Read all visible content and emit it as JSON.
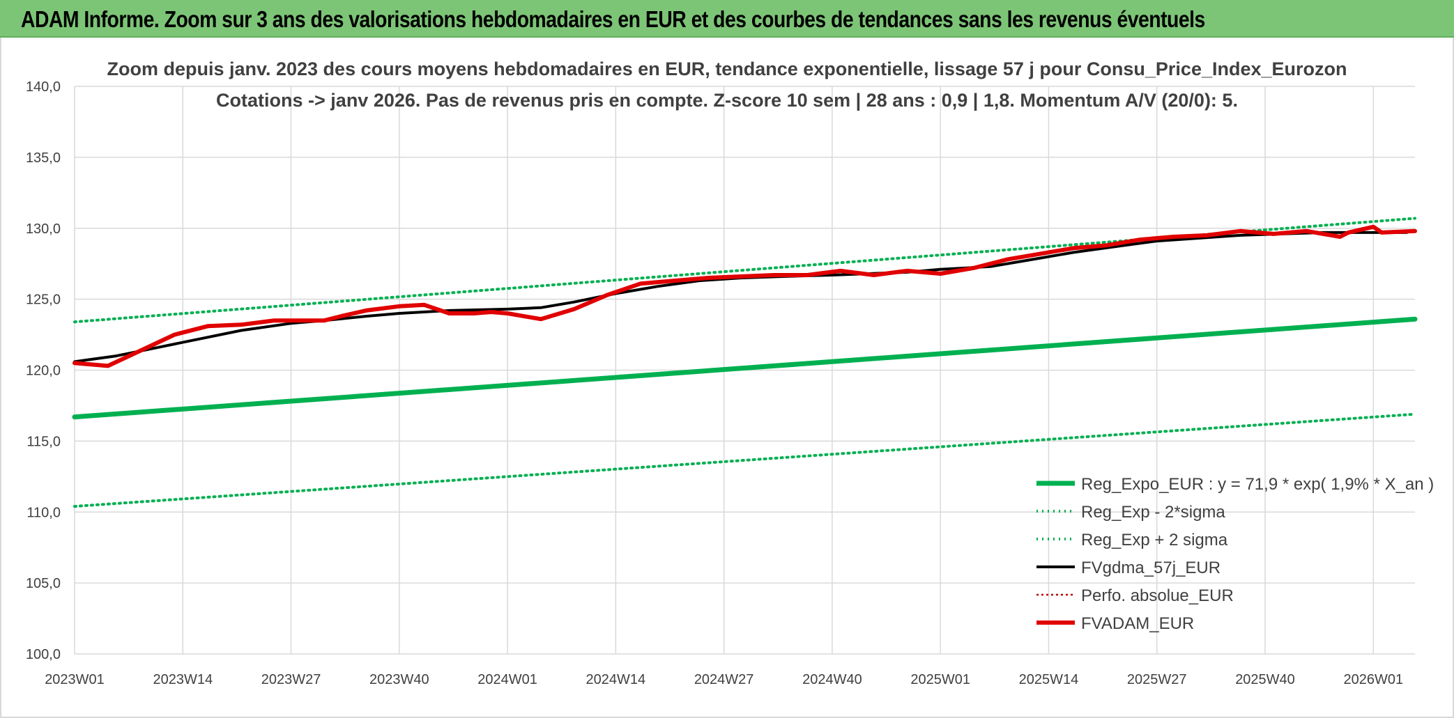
{
  "header": {
    "title": "ADAM Informe. Zoom sur 3 ans des valorisations hebdomadaires en EUR et des courbes de tendances sans les revenus éventuels"
  },
  "chart_data": {
    "type": "line",
    "title_line1": "Zoom depuis janv. 2023 des cours moyens hebdomadaires en EUR, tendance exponentielle, lissage 57 j pour Consu_Price_Index_Eurozon",
    "title_line2": "Cotations -> janv 2026. Pas de revenus pris en compte. Z-score 10 sem | 28 ans : 0,9  | 1,8. Momentum A/V (20/0): 5.",
    "xlabel": "",
    "ylabel": "",
    "ylim": [
      100,
      140
    ],
    "yticks": [
      "100,0",
      "105,0",
      "110,0",
      "115,0",
      "120,0",
      "125,0",
      "130,0",
      "135,0",
      "140,0"
    ],
    "xticks": [
      "2023W01",
      "2023W14",
      "2023W27",
      "2023W40",
      "2024W01",
      "2024W14",
      "2024W27",
      "2024W40",
      "2025W01",
      "2025W14",
      "2025W27",
      "2025W40",
      "2026W01"
    ],
    "x_range_weeks": [
      0,
      161
    ],
    "legend_position": "bottom-right",
    "colors": {
      "reg_expo": "#00b050",
      "sigma": "#00b050",
      "fvgdma": "#000000",
      "perfo": "#c00000",
      "fvadam": "#e00000",
      "grid": "#d9d9d9",
      "axis_text": "#404040"
    },
    "series": [
      {
        "name": "Reg_Expo_EUR : y = 71,9 * exp( 1,9% *  X_an )",
        "key": "reg_expo",
        "style": "solid-thick",
        "x": [
          0,
          161
        ],
        "values": [
          116.7,
          123.6
        ]
      },
      {
        "name": "Reg_Exp - 2*sigma",
        "key": "sigma_low",
        "style": "dotted",
        "x": [
          0,
          161
        ],
        "values": [
          110.4,
          116.9
        ]
      },
      {
        "name": "Reg_Exp + 2 sigma",
        "key": "sigma_high",
        "style": "dotted",
        "x": [
          0,
          161
        ],
        "values": [
          123.4,
          130.7
        ]
      },
      {
        "name": "FVgdma_57j_EUR",
        "key": "fvgdma",
        "style": "solid",
        "x": [
          0,
          5,
          10,
          15,
          20,
          26,
          30,
          35,
          39,
          45,
          52,
          56,
          60,
          65,
          70,
          75,
          80,
          85,
          91,
          100,
          104,
          110,
          115,
          120,
          125,
          130,
          135,
          140,
          145,
          150,
          155,
          160
        ],
        "values": [
          120.6,
          121.0,
          121.6,
          122.2,
          122.8,
          123.3,
          123.5,
          123.8,
          124.0,
          124.2,
          124.3,
          124.4,
          124.8,
          125.4,
          125.9,
          126.3,
          126.5,
          126.6,
          126.7,
          126.9,
          127.1,
          127.3,
          127.8,
          128.3,
          128.7,
          129.1,
          129.3,
          129.5,
          129.6,
          129.7,
          129.7,
          129.7
        ]
      },
      {
        "name": "Perfo. absolue_EUR",
        "key": "perfo",
        "style": "dotted-thin",
        "x": [],
        "values": []
      },
      {
        "name": "FVADAM_EUR",
        "key": "fvadam",
        "style": "solid-thick",
        "x": [
          0,
          4,
          8,
          12,
          16,
          20,
          24,
          30,
          32,
          35,
          39,
          42,
          45,
          48,
          50,
          52,
          56,
          60,
          64,
          68,
          72,
          76,
          80,
          84,
          88,
          92,
          96,
          100,
          104,
          108,
          112,
          116,
          120,
          124,
          128,
          132,
          136,
          140,
          144,
          148,
          152,
          153,
          156,
          157,
          161
        ],
        "values": [
          120.5,
          120.3,
          121.4,
          122.5,
          123.1,
          123.2,
          123.5,
          123.5,
          123.8,
          124.2,
          124.5,
          124.6,
          124.0,
          124.0,
          124.1,
          124.0,
          123.6,
          124.3,
          125.3,
          126.1,
          126.3,
          126.5,
          126.6,
          126.7,
          126.7,
          127.0,
          126.7,
          127.0,
          126.8,
          127.2,
          127.8,
          128.2,
          128.6,
          128.8,
          129.2,
          129.4,
          129.5,
          129.8,
          129.6,
          129.8,
          129.4,
          129.7,
          130.1,
          129.7,
          129.8
        ]
      }
    ]
  }
}
